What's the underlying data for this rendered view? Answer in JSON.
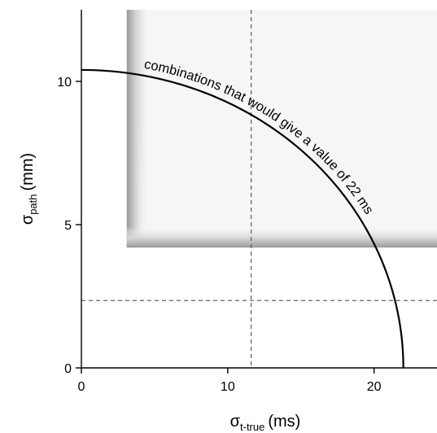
{
  "chart_data": {
    "type": "line",
    "title": "",
    "xlabel": {
      "symbol": "σ",
      "subscript": "t-true",
      "unit": "(ms)"
    },
    "ylabel": {
      "symbol": "σ",
      "subscript": "path",
      "unit": "(mm)"
    },
    "xlim": [
      0,
      24.3
    ],
    "ylim": [
      0,
      12.5
    ],
    "x_ticks": [
      0,
      10,
      20
    ],
    "y_ticks": [
      0,
      5,
      10
    ],
    "grid": false,
    "series": [
      {
        "shape": "quarter-ellipse",
        "x_radius": 22,
        "y_radius": 10.4,
        "annotation": "combinations that would give a value of 22 ms"
      }
    ],
    "reference_lines": {
      "vertical_x": 11.6,
      "horizontal_y": 2.35
    },
    "shaded_region": {
      "x_from": 3.1,
      "y_from": 4.2
    }
  }
}
